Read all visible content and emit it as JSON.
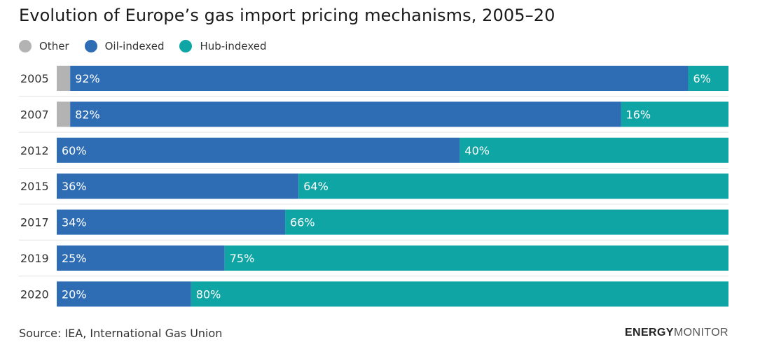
{
  "title": "Evolution of Europe’s gas import pricing mechanisms, 2005–20",
  "source": "Source: IEA, International Gas Union",
  "brand": {
    "part1": "ENERGY",
    "part2": "MONITOR"
  },
  "colors": {
    "Other": "#b3b3b3",
    "Oil-indexed": "#2e6db4",
    "Hub-indexed": "#0ea5a4"
  },
  "chart_data": {
    "type": "bar",
    "orientation": "horizontal",
    "stacked": true,
    "title": "Evolution of Europe’s gas import pricing mechanisms, 2005–20",
    "categories": [
      "2005",
      "2007",
      "2012",
      "2015",
      "2017",
      "2019",
      "2020"
    ],
    "series": [
      {
        "name": "Other",
        "values": [
          2,
          2,
          0,
          0,
          0,
          0,
          0
        ]
      },
      {
        "name": "Oil-indexed",
        "values": [
          92,
          82,
          60,
          36,
          34,
          25,
          20
        ]
      },
      {
        "name": "Hub-indexed",
        "values": [
          6,
          16,
          40,
          64,
          66,
          75,
          80
        ]
      }
    ],
    "labels": {
      "Other": [
        "",
        "",
        "",
        "",
        "",
        "",
        ""
      ],
      "Oil-indexed": [
        "92%",
        "82%",
        "60%",
        "36%",
        "34%",
        "25%",
        "20%"
      ],
      "Hub-indexed": [
        "6%",
        "16%",
        "40%",
        "64%",
        "66%",
        "75%",
        "80%"
      ]
    },
    "xlim": [
      0,
      100
    ],
    "legend": "top-left",
    "grid": false
  }
}
